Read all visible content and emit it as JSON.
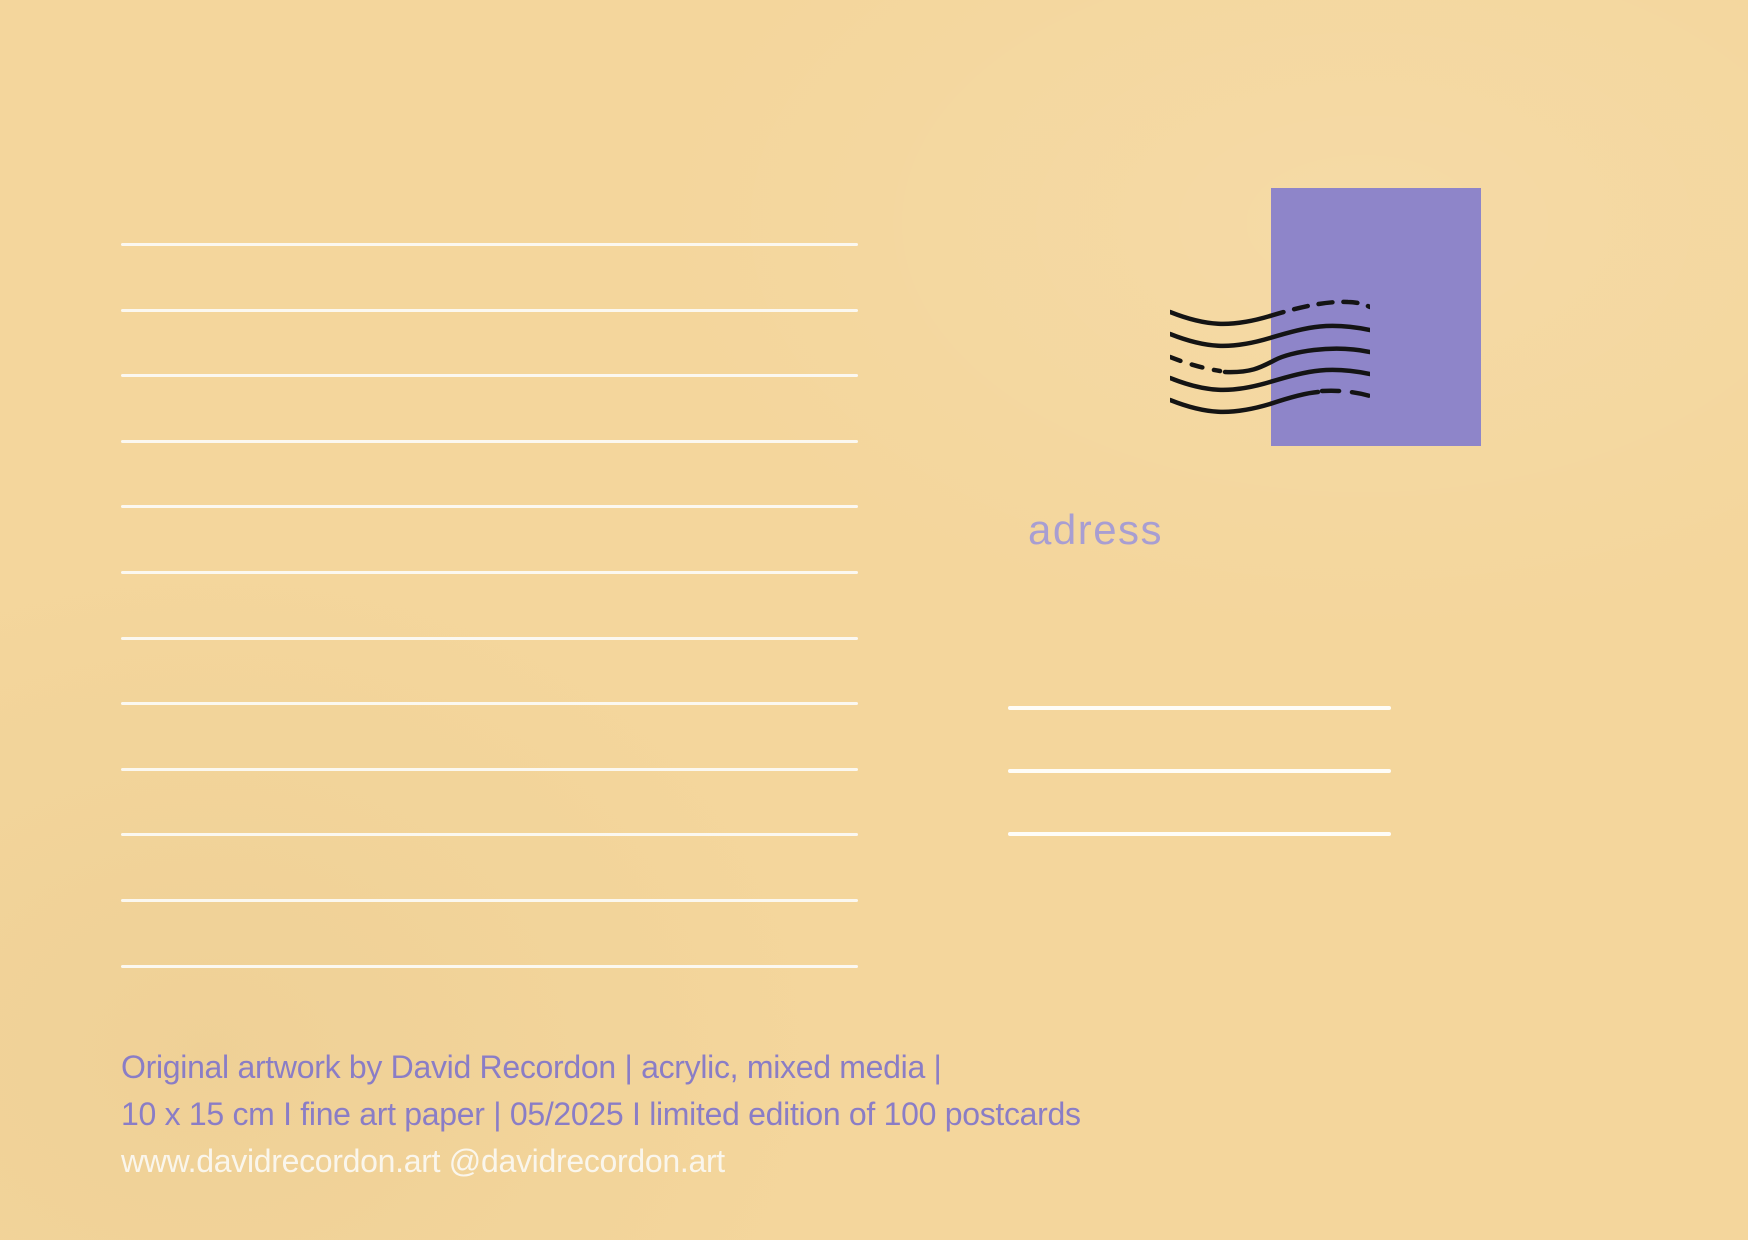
{
  "postcard": {
    "background_color": "#f4d69c",
    "stamp": {
      "color": "#8e85c9"
    },
    "postmark_color": "#141414",
    "address_label": "adress",
    "address_label_color": "#a89ed2",
    "message_lines_count": 12,
    "address_lines_count": 3,
    "line_color": "#fbf8f0",
    "footer": {
      "text_color": "#8a7dc6",
      "website_color": "#faf6ec",
      "artwork_info": "Original artwork by David Recordon | acrylic, mixed media |",
      "edition_info": "10 x 15 cm I fine art paper | 05/2025 I limited edition of 100 postcards",
      "website_info": "www.davidrecordon.art @davidrecordon.art"
    }
  }
}
